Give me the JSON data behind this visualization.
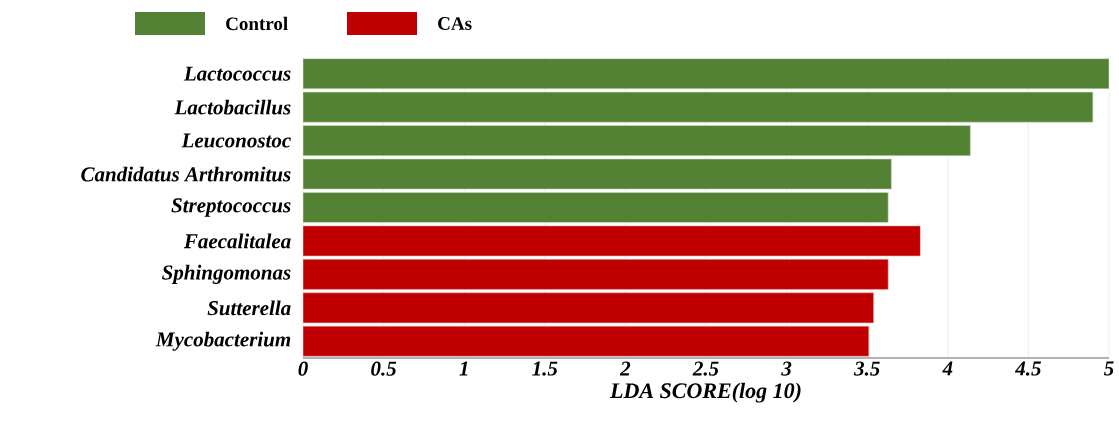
{
  "chart_data": {
    "type": "bar",
    "orientation": "horizontal",
    "xlabel": "LDA SCORE(log 10)",
    "categories": [
      "Lactococcus",
      "Lactobacillus",
      "Leuconostoc",
      "Candidatus Arthromitus",
      "Streptococcus",
      "Faecalitalea",
      "Sphingomonas",
      "Sutterella",
      "Mycobacterium"
    ],
    "series": [
      {
        "name": "Control",
        "color": "#548235",
        "values": [
          5.0,
          4.9,
          4.14,
          3.65,
          3.63,
          null,
          null,
          null,
          null
        ]
      },
      {
        "name": "CAs",
        "color": "#c00000",
        "values": [
          null,
          null,
          null,
          null,
          null,
          3.83,
          3.63,
          3.54,
          3.51
        ]
      }
    ],
    "xlim": [
      0,
      5
    ],
    "xticks": [
      0,
      0.5,
      1,
      1.5,
      2,
      2.5,
      3,
      3.5,
      4,
      4.5,
      5
    ],
    "grid": "x",
    "legend": "top left"
  }
}
